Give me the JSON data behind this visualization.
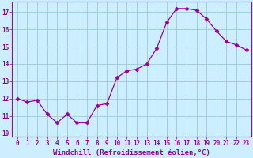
{
  "x": [
    0,
    1,
    2,
    3,
    4,
    5,
    6,
    7,
    8,
    9,
    10,
    11,
    12,
    13,
    14,
    15,
    16,
    17,
    18,
    19,
    20,
    21,
    22,
    23
  ],
  "y": [
    12.0,
    11.8,
    11.9,
    11.1,
    10.6,
    11.1,
    10.6,
    10.6,
    11.6,
    11.7,
    13.2,
    13.6,
    13.7,
    14.0,
    14.9,
    16.4,
    17.2,
    17.2,
    17.1,
    16.6,
    15.9,
    15.3,
    15.1,
    14.8
  ],
  "line_color": "#990099",
  "marker": "D",
  "marker_size": 2.5,
  "bg_color": "#cceeff",
  "grid_color": "#99cccc",
  "xlabel": "Windchill (Refroidissement éolien,°C)",
  "ylim": [
    9.8,
    17.6
  ],
  "yticks": [
    10,
    11,
    12,
    13,
    14,
    15,
    16,
    17
  ],
  "xticks": [
    0,
    1,
    2,
    3,
    4,
    5,
    6,
    7,
    8,
    9,
    10,
    11,
    12,
    13,
    14,
    15,
    16,
    17,
    18,
    19,
    20,
    21,
    22,
    23
  ],
  "tick_label_fontsize": 5.5,
  "xlabel_fontsize": 6.5,
  "spine_color": "#aa00aa"
}
